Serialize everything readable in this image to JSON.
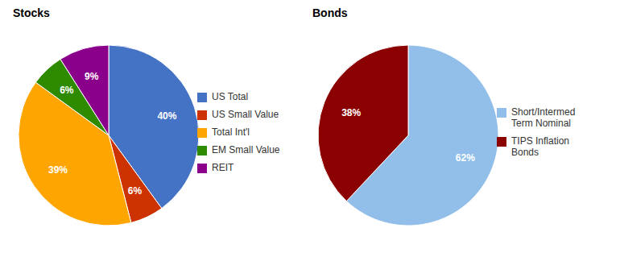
{
  "chart_data": [
    {
      "type": "pie",
      "title": "Stocks",
      "categories": [
        "US Total",
        "US Small Value",
        "Total Int'l",
        "EM Small Value",
        "REIT"
      ],
      "values": [
        40,
        6,
        39,
        6,
        9
      ],
      "value_labels": [
        "40%",
        "6%",
        "39%",
        "6%",
        "9%"
      ],
      "colors": [
        "#4472C4",
        "#CC3300",
        "#FFA500",
        "#2E8B00",
        "#8B008B"
      ],
      "data_labels": true,
      "legend": "right"
    },
    {
      "type": "pie",
      "title": "Bonds",
      "categories": [
        "Short/Intermed\nTerm Nominal",
        "TIPS Inflation\nBonds"
      ],
      "values": [
        62,
        38
      ],
      "value_labels": [
        "62%",
        "38%"
      ],
      "colors": [
        "#92BFEA",
        "#8B0000"
      ],
      "data_labels": true,
      "legend": "right"
    }
  ]
}
